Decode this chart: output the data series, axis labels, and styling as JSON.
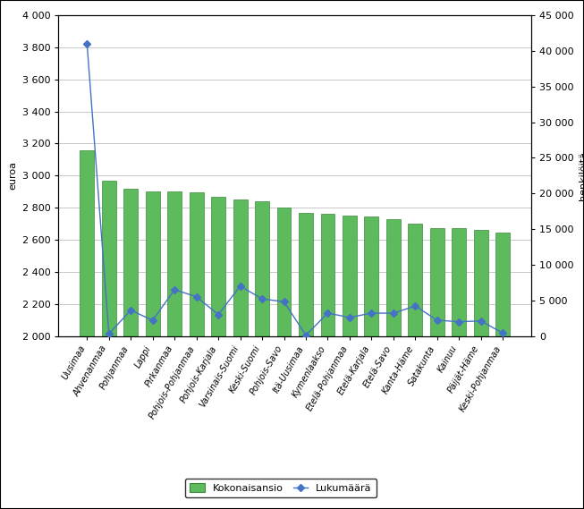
{
  "categories": [
    "Uusimaa",
    "Ahvenanmaa",
    "Pohjanmaa",
    "Lappi",
    "Pirkanmaa",
    "Pohjois-Pohjanmaa",
    "Pohjois-Karjala",
    "Varsinais-Suomi",
    "Keski-Suomi",
    "Pohjois-Savo",
    "Itä-Uusimaa",
    "Kymenlaakso",
    "Etelä-Pohjanmaa",
    "Etelä-Karjala",
    "Etelä-Savo",
    "Kanta-Häme",
    "Satakunta",
    "Kainuu",
    "Päijät-Häme",
    "Keski-Pohjanmaa"
  ],
  "bar_values": [
    3160,
    2970,
    2920,
    2900,
    2900,
    2895,
    2870,
    2850,
    2840,
    2800,
    2770,
    2760,
    2750,
    2745,
    2730,
    2700,
    2675,
    2670,
    2660,
    2645
  ],
  "line_values": [
    41000,
    300,
    3600,
    2200,
    6500,
    5500,
    3000,
    7000,
    5200,
    4800,
    100,
    3200,
    2600,
    3200,
    3200,
    4200,
    2200,
    2000,
    2100,
    400
  ],
  "bar_color": "#5dba5d",
  "bar_edge_color": "#3a8a3a",
  "line_color": "#4472c4",
  "marker_color": "#4472c4",
  "marker_fill": "#ffffff",
  "background_color": "#ffffff",
  "ylabel_left": "euroa",
  "ylabel_right": "henkilöitä",
  "ylim_left": [
    2000,
    4000
  ],
  "ylim_right": [
    0,
    45000
  ],
  "yticks_left": [
    2000,
    2200,
    2400,
    2600,
    2800,
    3000,
    3200,
    3400,
    3600,
    3800,
    4000
  ],
  "yticks_right": [
    0,
    5000,
    10000,
    15000,
    20000,
    25000,
    30000,
    35000,
    40000,
    45000
  ],
  "legend_labels": [
    "Kokonaisansio",
    "Lukumäärä"
  ],
  "grid_color": "#c0c0c0",
  "spine_color": "#000000",
  "tick_fontsize": 8,
  "xlabel_fontsize": 7,
  "ylabel_fontsize": 8,
  "legend_fontsize": 8
}
